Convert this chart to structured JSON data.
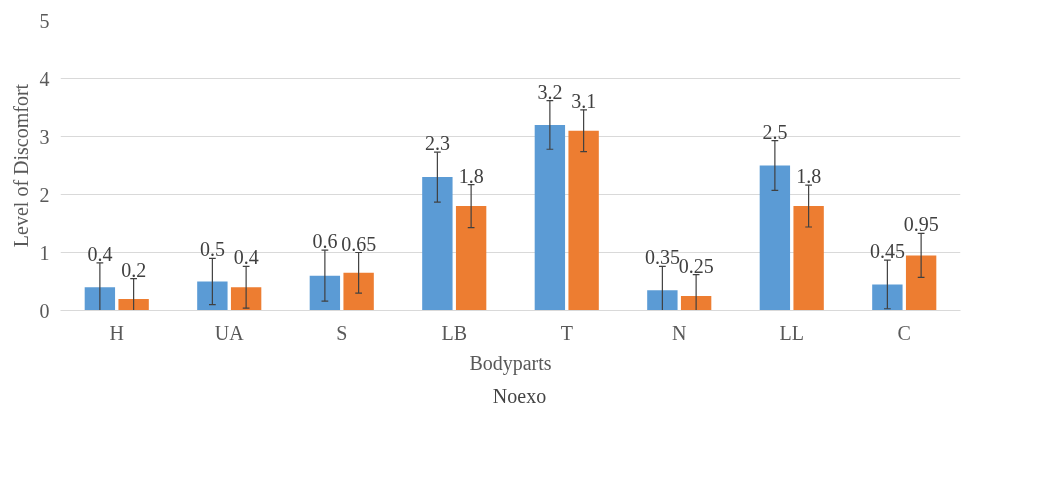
{
  "chart_data": {
    "type": "bar",
    "xlabel": "Bodyparts",
    "ylabel": "Level of Discomfort",
    "categories": [
      "H",
      "UA",
      "S",
      "LB",
      "T",
      "N",
      "LL",
      "C"
    ],
    "series": [
      {
        "name": "Noexo",
        "color": "#5b9bd5",
        "values": [
          0.4,
          0.5,
          0.6,
          2.3,
          3.2,
          0.35,
          2.5,
          0.45
        ],
        "errors": [
          [
            0,
            0.82
          ],
          0.4,
          0.44,
          0.43,
          0.42,
          [
            0,
            0.76
          ],
          0.43,
          0.42
        ]
      },
      {
        "color": "#ed7d31",
        "values": [
          0.2,
          0.4,
          0.65,
          1.8,
          3.1,
          0.25,
          1.8,
          0.95
        ],
        "errors": [
          [
            0,
            0.55
          ],
          0.36,
          0.35,
          0.37,
          0.36,
          [
            0,
            0.62
          ],
          0.36,
          0.38
        ]
      }
    ],
    "ylim": [
      0,
      5
    ],
    "yticks": [
      0,
      1,
      2,
      3,
      4,
      5
    ],
    "grid": "y",
    "legend": "bottom",
    "data_labels": true
  }
}
